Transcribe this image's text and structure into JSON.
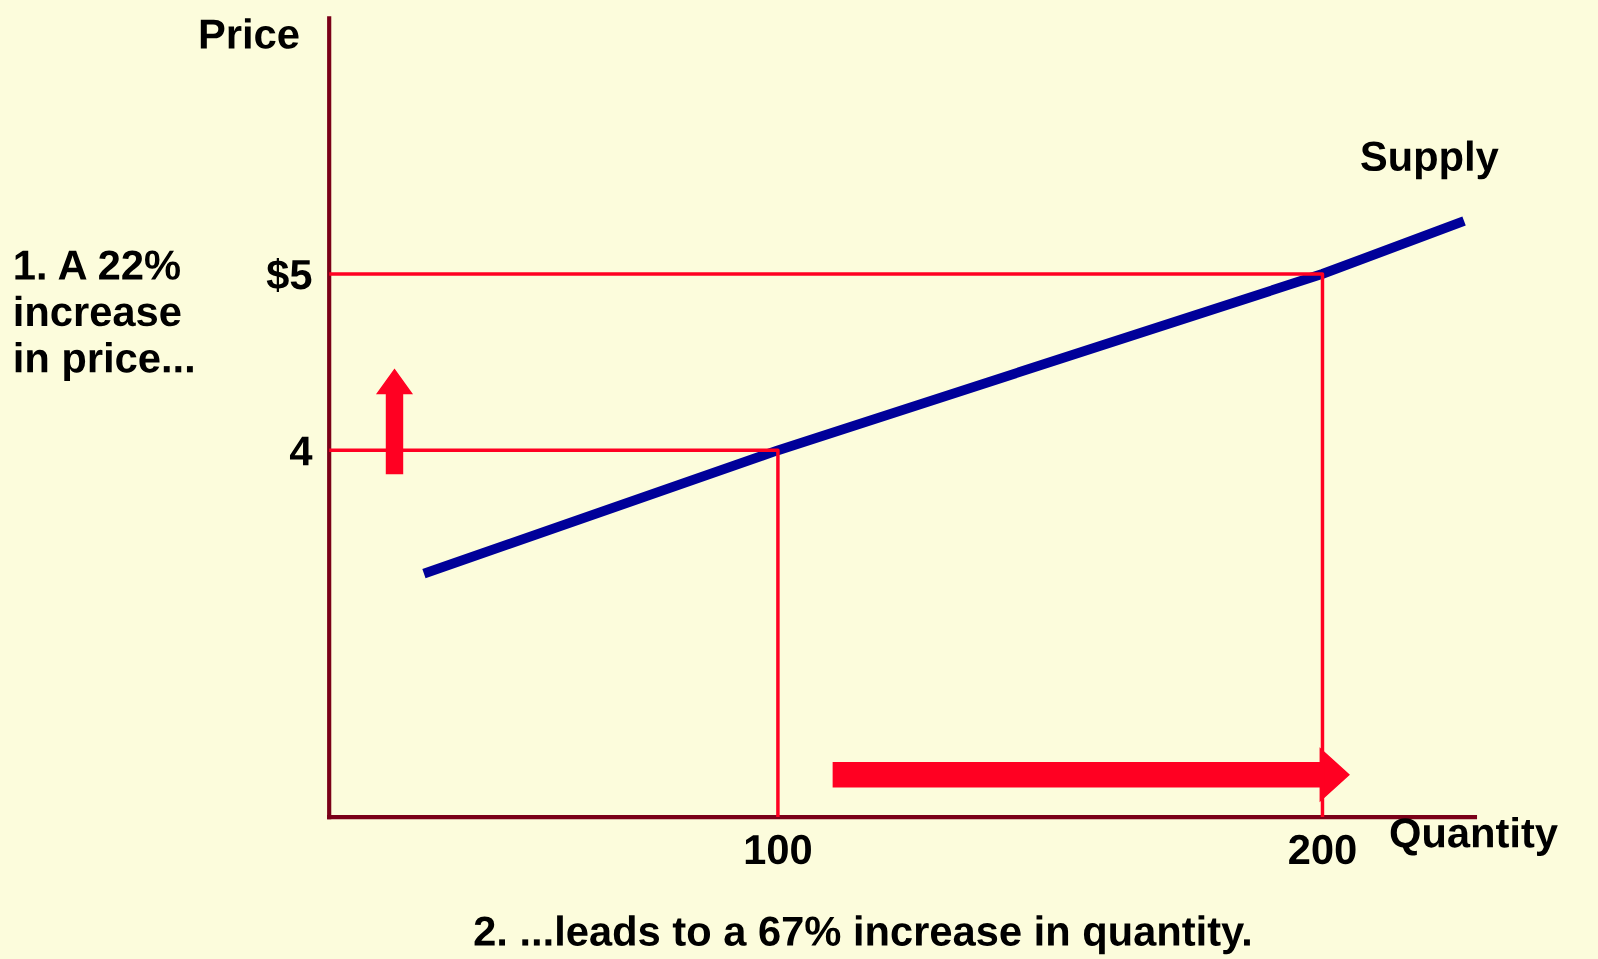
{
  "chart_data": {
    "type": "line",
    "xlabel": "Quantity",
    "ylabel": "Price",
    "xlim": [
      17.6,
      228
    ],
    "ylim": [
      1.92,
      6.45
    ],
    "xticks": [
      100,
      200
    ],
    "yticks": [
      {
        "value": 4,
        "label": "4"
      },
      {
        "value": 5,
        "label": "$5"
      }
    ],
    "grid": false,
    "legend": false,
    "marker": "none",
    "line_style": "solid",
    "series": [
      {
        "name": "Supply",
        "color": "#000099",
        "x": [
          35,
          100,
          200,
          226
        ],
        "values": [
          3.3,
          4,
          5,
          5.3
        ]
      },
      {
        "color": "#ff0022",
        "x": [
          17.6,
          100,
          100
        ],
        "values": [
          4,
          4,
          1.92
        ]
      },
      {
        "color": "#ff0022",
        "x": [
          17.6,
          200,
          200
        ],
        "values": [
          5,
          5,
          1.92
        ]
      }
    ],
    "annotations": [
      "1. A 22%\nincrease\nin price...",
      "2. ...leads to a 67% increase in quantity."
    ]
  }
}
